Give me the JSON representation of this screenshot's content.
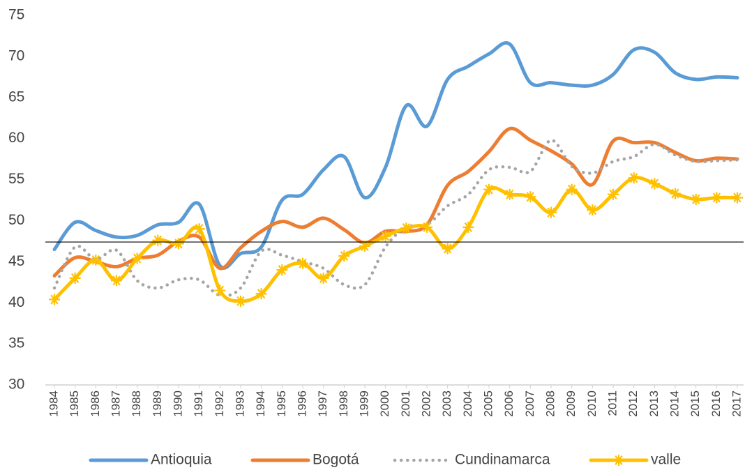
{
  "chart_data": {
    "type": "line",
    "categories": [
      "1984",
      "1985",
      "1986",
      "1987",
      "1988",
      "1989",
      "1990",
      "1991",
      "1992",
      "1993",
      "1994",
      "1995",
      "1996",
      "1997",
      "1998",
      "1999",
      "2000",
      "2001",
      "2002",
      "2003",
      "2004",
      "2005",
      "2006",
      "2007",
      "2008",
      "2009",
      "2010",
      "2011",
      "2012",
      "2013",
      "2014",
      "2015",
      "2016",
      "2017"
    ],
    "series": [
      {
        "name": "Antioquia",
        "color": "#5b9bd5",
        "style": "solid",
        "values": [
          46.5,
          49.8,
          48.8,
          48.0,
          48.2,
          49.5,
          49.8,
          52.0,
          44.5,
          46.0,
          46.8,
          52.5,
          53.2,
          56.2,
          57.8,
          52.8,
          56.5,
          64.0,
          61.5,
          67.2,
          68.8,
          70.3,
          71.5,
          66.8,
          66.8,
          66.5,
          66.5,
          67.8,
          70.8,
          70.5,
          68.0,
          67.2,
          67.5,
          67.4
        ]
      },
      {
        "name": "Bogotá",
        "color": "#ed7d31",
        "style": "solid",
        "values": [
          43.3,
          45.5,
          45.0,
          44.4,
          45.4,
          45.8,
          47.5,
          48.0,
          44.2,
          46.7,
          48.7,
          49.9,
          49.2,
          50.3,
          48.9,
          47.3,
          48.7,
          48.7,
          49.5,
          54.3,
          56.0,
          58.4,
          61.2,
          59.8,
          58.5,
          56.9,
          54.4,
          59.7,
          59.5,
          59.5,
          58.3,
          57.3,
          57.6,
          57.5
        ]
      },
      {
        "name": "Cundinamarca",
        "color": "#a5a5a5",
        "style": "dotted",
        "values": [
          41.8,
          46.8,
          45.3,
          46.4,
          42.7,
          41.8,
          42.8,
          42.8,
          40.9,
          41.8,
          46.3,
          45.8,
          45.0,
          44.2,
          42.2,
          42.2,
          46.8,
          49.2,
          49.5,
          51.8,
          53.2,
          56.2,
          56.5,
          56.0,
          59.8,
          56.6,
          55.8,
          57.2,
          57.8,
          59.3,
          58.0,
          57.2,
          57.3,
          57.4
        ]
      },
      {
        "name": "valle",
        "color": "#ffc000",
        "style": "solid",
        "marker": "star",
        "values": [
          40.4,
          43.0,
          45.2,
          42.7,
          45.4,
          47.6,
          47.2,
          49.0,
          41.5,
          40.2,
          41.1,
          44.0,
          44.8,
          43.0,
          45.7,
          46.9,
          48.1,
          49.1,
          49.2,
          46.6,
          49.2,
          53.8,
          53.2,
          52.9,
          51.0,
          53.8,
          51.3,
          53.2,
          55.2,
          54.5,
          53.3,
          52.6,
          52.8,
          52.8
        ]
      }
    ],
    "reference_line": 47.4,
    "ylim": [
      30,
      75
    ],
    "yticks": [
      30,
      35,
      40,
      45,
      50,
      55,
      60,
      65,
      70,
      75
    ],
    "grid": false,
    "legend": "bottom"
  }
}
